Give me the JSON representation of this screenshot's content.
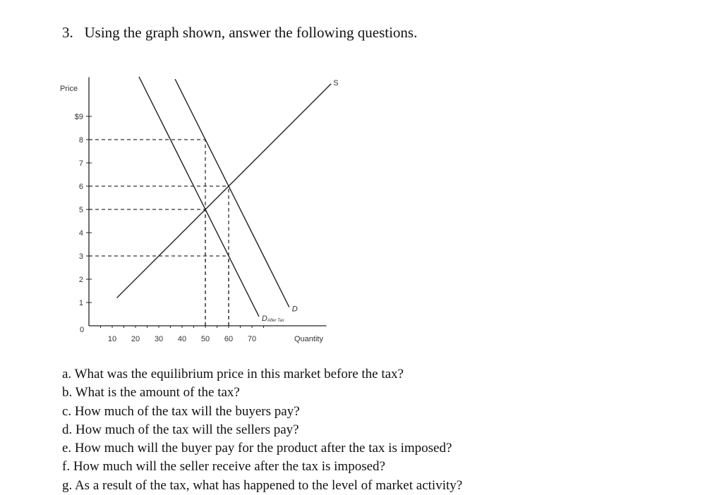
{
  "document": {
    "title": "3.   Using the graph shown, answer the following questions.",
    "questions": [
      "a. What was the equilibrium price in this market before the tax?",
      "b. What is the amount of the tax?",
      "c. How much of the tax will the buyers pay?",
      "d. How much of the tax will the sellers pay?",
      "e. How much will the buyer pay for the product after the tax is imposed?",
      "f. How much will the seller receive after the tax is imposed?",
      "g. As a result of the tax, what has happened to the level of market activity?"
    ]
  },
  "chart_data": {
    "type": "line",
    "title": "",
    "xlabel": "Quantity",
    "ylabel": "Price",
    "origin_label": "0",
    "xlim": [
      0,
      108
    ],
    "ylim": [
      0,
      10.5
    ],
    "x_ticks": [
      10,
      20,
      30,
      40,
      50,
      60,
      70
    ],
    "x_tick_labels": [
      "10",
      "20",
      "30",
      "40",
      "50",
      "60",
      "70"
    ],
    "y_ticks": [
      1,
      2,
      3,
      4,
      5,
      6,
      7,
      8,
      9
    ],
    "y_tick_labels": [
      "1",
      "2",
      "3",
      "4",
      "5",
      "6",
      "7",
      "8",
      "$9"
    ],
    "grid": false,
    "series": [
      {
        "name": "S",
        "label_main": "S",
        "label_sub": "",
        "points": [
          [
            12,
            1.2
          ],
          [
            104,
            10.4
          ]
        ]
      },
      {
        "name": "D",
        "label_main": "D",
        "label_sub": "",
        "points": [
          [
            37,
            10.6
          ],
          [
            86,
            0.8
          ]
        ]
      },
      {
        "name": "D After Tax",
        "label_main": "D",
        "label_sub": "After Tax",
        "points": [
          [
            21.5,
            10.7
          ],
          [
            73,
            0.4
          ]
        ]
      }
    ],
    "reference_lines": [
      {
        "price": 8,
        "quantity": 50
      },
      {
        "price": 6,
        "quantity": 60
      },
      {
        "price": 5,
        "quantity": 50
      },
      {
        "price": 3,
        "quantity": 60
      }
    ],
    "colors": {
      "line": "#222222",
      "dashed": "#333333"
    }
  }
}
